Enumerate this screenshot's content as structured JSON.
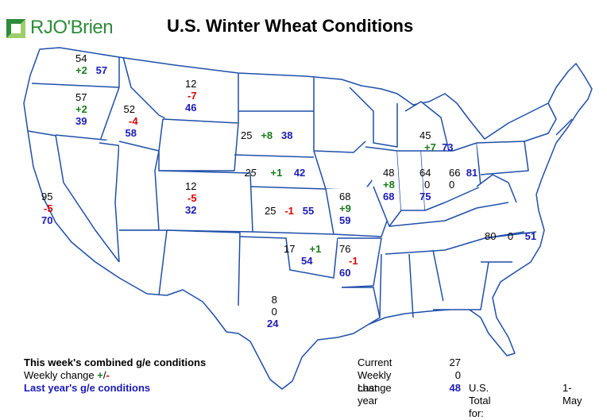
{
  "header": {
    "logo_text": "RJO'Brien",
    "title": "U.S. Winter Wheat Conditions"
  },
  "colors": {
    "state_border": "#1f4fa8",
    "current": "#000000",
    "change_positive": "#1a7a1a",
    "change_negative": "#dd0000",
    "last_year": "#1a1ab8",
    "logo_green": "#2e8b3a"
  },
  "states": [
    {
      "id": "WA",
      "current": "54",
      "change": "+2",
      "last_year": "57"
    },
    {
      "id": "OR",
      "current": "57",
      "change": "+2",
      "last_year": "39"
    },
    {
      "id": "ID",
      "current": "52",
      "change": "-4",
      "last_year": "58"
    },
    {
      "id": "MT",
      "current": "12",
      "change": "-7",
      "last_year": "46"
    },
    {
      "id": "SD",
      "current": "25",
      "change": "+8",
      "last_year": "38"
    },
    {
      "id": "NE",
      "current": "25",
      "change": "+1",
      "last_year": "42"
    },
    {
      "id": "CO",
      "current": "12",
      "change": "-5",
      "last_year": "32"
    },
    {
      "id": "CA",
      "current": "95",
      "change": "-5",
      "last_year": "70"
    },
    {
      "id": "KS",
      "current": "25",
      "change": "-1",
      "last_year": "55"
    },
    {
      "id": "MO",
      "current": "68",
      "change": "+9",
      "last_year": "59"
    },
    {
      "id": "IL",
      "current": "48",
      "change": "+8",
      "last_year": "68"
    },
    {
      "id": "IN",
      "current": "64",
      "change": "0",
      "last_year": "75"
    },
    {
      "id": "OH",
      "current": "66",
      "change": "0",
      "last_year": "81"
    },
    {
      "id": "MI",
      "current": "45",
      "change": "+7",
      "last_year": "73"
    },
    {
      "id": "NC",
      "current": "80",
      "change": "0",
      "last_year": "51"
    },
    {
      "id": "OK",
      "current": "17",
      "change": "+1",
      "last_year": "54"
    },
    {
      "id": "AR",
      "current": "76",
      "change": "-1",
      "last_year": "60"
    },
    {
      "id": "TX",
      "current": "8",
      "change": "0",
      "last_year": "24"
    }
  ],
  "legend": {
    "line1": "This week's combined g/e conditions",
    "line2_prefix": "Weekly change ",
    "line2_plus": "+",
    "line2_slash": "/",
    "line2_minus": "-",
    "line3": "Last year's g/e conditions"
  },
  "totals": {
    "current_label": "Current",
    "current_value": "27",
    "change_label": "Weekly change",
    "change_value": "0",
    "last_year_label": "Last year",
    "last_year_value": "48",
    "us_total_label": "U.S. Total for:",
    "date": "1-May"
  }
}
